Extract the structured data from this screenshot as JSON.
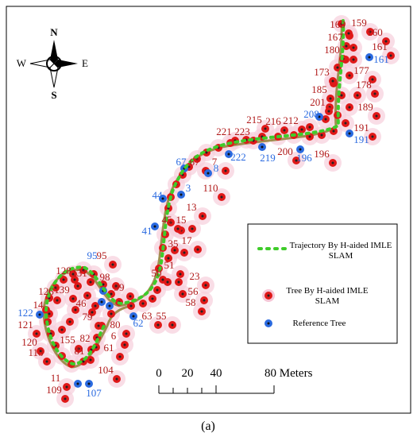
{
  "compass": {
    "north": "N",
    "south": "S",
    "east": "E",
    "west": "W"
  },
  "legend": {
    "trajectory": "Trajectory By H-aided IMLE SLAM",
    "tree": "Tree By H-aided IMLE SLAM",
    "reference": "Reference Tree"
  },
  "scale_bar": {
    "labels": [
      "0",
      "20",
      "40",
      "80 Meters"
    ]
  },
  "caption": "(a)",
  "estimated_tree_labels": [
    "159",
    "168",
    "160",
    "167",
    "161",
    "180",
    "173",
    "177",
    "178",
    "185",
    "189",
    "201",
    "191",
    "215",
    "216",
    "212",
    "221",
    "223",
    "200",
    "196",
    "67",
    "7",
    "110",
    "13",
    "45",
    "15",
    "17",
    "35",
    "51",
    "50",
    "23",
    "56",
    "58",
    "55",
    "63",
    "95",
    "98",
    "99",
    "128",
    "131",
    "126",
    "139",
    "14",
    "46",
    "121",
    "79",
    "80",
    "120",
    "155",
    "118",
    "81",
    "82",
    "6",
    "61",
    "104",
    "11",
    "109"
  ],
  "reference_tree_labels": [
    "161",
    "208",
    "191",
    "196",
    "219",
    "222",
    "67",
    "8",
    "3",
    "44",
    "41",
    "62",
    "95",
    "122",
    "107"
  ]
}
